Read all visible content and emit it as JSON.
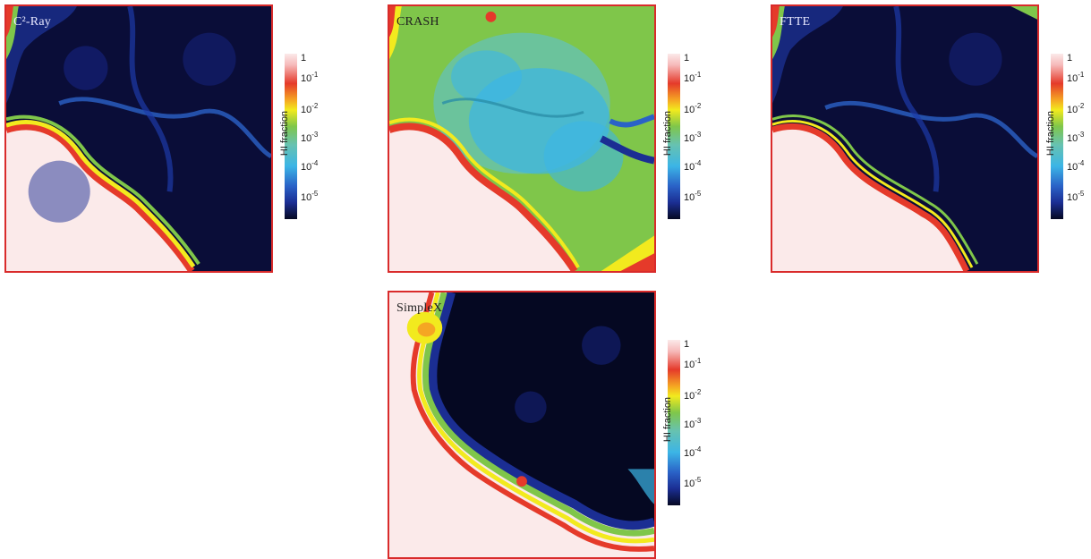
{
  "panels": [
    {
      "label": "C²-Ray",
      "colorbar_label": "HI fraction"
    },
    {
      "label": "CRASH",
      "colorbar_label": "HI fraction"
    },
    {
      "label": "FTTE",
      "colorbar_label": "HI fraction"
    },
    {
      "label": "SimpleX",
      "colorbar_label": "HI fraction"
    }
  ],
  "colorbar": {
    "ticks": [
      {
        "base": "1",
        "exp": ""
      },
      {
        "base": "10",
        "exp": "-1"
      },
      {
        "base": "10",
        "exp": "-2"
      },
      {
        "base": "10",
        "exp": "-3"
      },
      {
        "base": "10",
        "exp": "-4"
      },
      {
        "base": "10",
        "exp": "-5"
      }
    ]
  },
  "colors": {
    "frame": "#d92b2b",
    "neutral": "#fbeaea",
    "ionized": "#0b0e3a",
    "front_red": "#e53a2a",
    "front_yellow": "#f2ea1e",
    "front_green": "#7fc64a",
    "mid_cyan": "#3cb5e6",
    "mid_blue": "#1b2e93"
  }
}
